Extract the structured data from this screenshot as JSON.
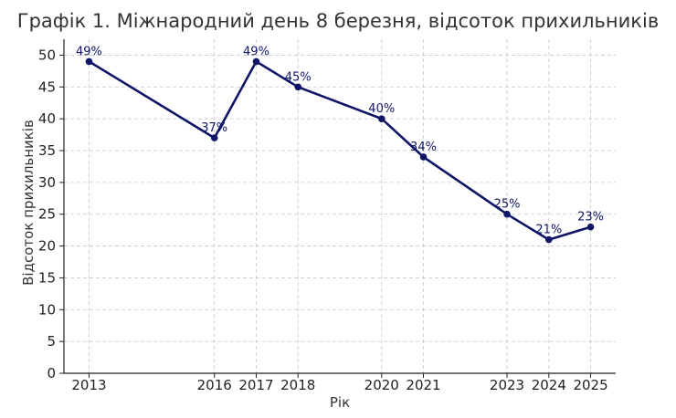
{
  "chart_data": {
    "type": "line",
    "title": "Графік 1. Міжнародний день 8 березня, відсоток прихильників",
    "xlabel": "Рік",
    "ylabel": "Відсоток прихильників",
    "x": [
      2013,
      2016,
      2017,
      2018,
      2020,
      2021,
      2023,
      2024,
      2025
    ],
    "y": [
      49,
      37,
      49,
      45,
      40,
      34,
      25,
      21,
      23
    ],
    "data_labels": [
      "49%",
      "37%",
      "49%",
      "45%",
      "40%",
      "34%",
      "25%",
      "21%",
      "23%"
    ],
    "xlim": [
      2012.4,
      2025.6
    ],
    "ylim": [
      0,
      52.5
    ],
    "yticks": [
      0,
      5,
      10,
      15,
      20,
      25,
      30,
      35,
      40,
      45,
      50
    ],
    "grid": true,
    "line_color": "#0f1566"
  }
}
